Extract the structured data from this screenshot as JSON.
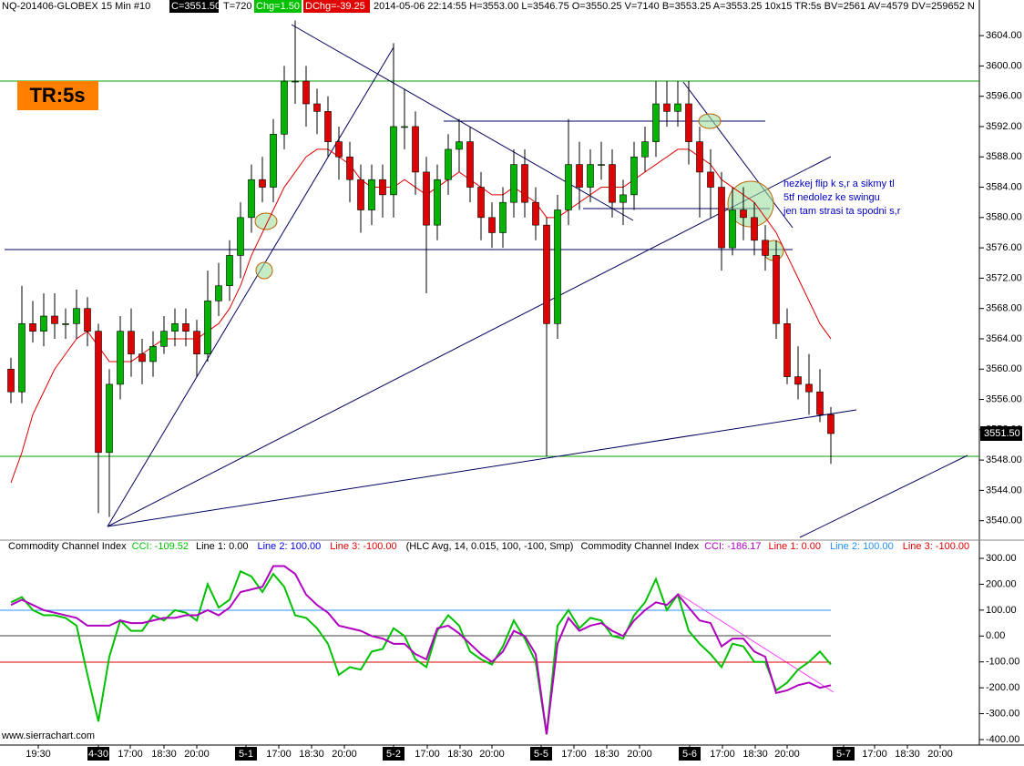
{
  "header": {
    "symbol": "NQ-201406-GLOBEX 15 Min  #10",
    "close": "C=3551.50",
    "ticks": "T=720",
    "chg": "Chg=1.50",
    "dchg": "DChg=-39.25",
    "info": "2014-05-06 22:14:55 H=3553.00 L=3546.75 O=3550.25 V=7140 B=3553.25 A=3553.25 10x15 TR:5s BV=2561 AV=4579 DV=259652 N",
    "badge": "TR:5s",
    "price_box": "3551.50",
    "note": [
      "hezkej flip k s,r a sikmy tl",
      "5tf nedolez ke swingu",
      "jen tam strasi ta spodni s,r"
    ],
    "site": "www.sierrachart.com"
  },
  "chart_data": [
    {
      "type": "candlestick",
      "up_color": "#00b400",
      "down_color": "#e00000",
      "open": [
        3560,
        3557,
        3566,
        3565,
        3567,
        3566,
        3566,
        3568,
        3565,
        3549,
        3558,
        3565,
        3562,
        3561,
        3563,
        3565,
        3566,
        3565,
        3562,
        3569,
        3571,
        3575,
        3580,
        3585,
        3584,
        3591,
        3598,
        3598,
        3595,
        3594,
        3590,
        3588,
        3585,
        3581,
        3585,
        3583,
        3592,
        3592,
        3586,
        3579,
        3585,
        3589,
        3590,
        3584,
        3580,
        3578,
        3582,
        3587,
        3582,
        3579,
        3566,
        3581,
        3587,
        3584,
        3587,
        3587,
        3582,
        3583,
        3588,
        3590,
        3595,
        3594,
        3595,
        3590,
        3586,
        3584,
        3576,
        3581,
        3580,
        3577,
        3575,
        3566,
        3559,
        3558,
        3557,
        3554
      ],
      "high": [
        3561.5,
        3571,
        3569,
        3570,
        3570,
        3568,
        3570.5,
        3569.5,
        3566,
        3560,
        3567,
        3568,
        3564,
        3565,
        3567,
        3568,
        3568,
        3566.5,
        3573,
        3574,
        3577,
        3582,
        3587,
        3588,
        3593,
        3600,
        3606,
        3600,
        3597,
        3596,
        3592,
        3590,
        3587,
        3587,
        3587,
        3603,
        3597,
        3594,
        3588,
        3587,
        3591,
        3593,
        3592,
        3586,
        3582,
        3584,
        3589,
        3589,
        3584,
        3580,
        3583,
        3593,
        3590,
        3589,
        3590,
        3589,
        3585,
        3590,
        3592,
        3598,
        3598,
        3598,
        3598,
        3592,
        3589,
        3586,
        3584,
        3584,
        3582,
        3579,
        3577,
        3568,
        3563,
        3562,
        3560,
        3555
      ],
      "low": [
        3555.5,
        3555.5,
        3563.5,
        3563,
        3564,
        3564,
        3564,
        3563,
        3541,
        3540.5,
        3556,
        3559,
        3558,
        3559,
        3562,
        3563,
        3563,
        3559,
        3561,
        3567,
        3569,
        3572,
        3578,
        3582,
        3582,
        3589,
        3595,
        3592,
        3591,
        3588,
        3585,
        3582,
        3578,
        3579,
        3580,
        3580,
        3589,
        3583,
        3570,
        3577,
        3583,
        3586,
        3582,
        3577,
        3576,
        3576,
        3580,
        3580,
        3577,
        3548.5,
        3564,
        3579,
        3581,
        3582,
        3585,
        3580,
        3579,
        3581,
        3586,
        3588,
        3592,
        3592,
        3587,
        3580,
        3580,
        3573,
        3575,
        3577,
        3575,
        3573,
        3564,
        3558,
        3556,
        3554,
        3553,
        3547.5
      ],
      "close": [
        3557,
        3566,
        3565,
        3567,
        3566,
        3566,
        3568,
        3565,
        3549,
        3558,
        3565,
        3562,
        3561,
        3563,
        3565,
        3566,
        3565,
        3562,
        3569,
        3571,
        3575,
        3580,
        3585,
        3584,
        3591,
        3598,
        3598,
        3595,
        3594,
        3590,
        3588,
        3585,
        3581,
        3585,
        3583,
        3592,
        3592,
        3586,
        3579,
        3585,
        3589,
        3590,
        3584,
        3580,
        3578,
        3582,
        3587,
        3582,
        3579,
        3566,
        3581,
        3587,
        3584,
        3587,
        3587,
        3582,
        3583,
        3588,
        3590,
        3595,
        3594,
        3595,
        3590,
        3586,
        3584,
        3576,
        3581,
        3580,
        3577,
        3575,
        3566,
        3559,
        3558,
        3557,
        3554,
        3551.5
      ],
      "overlay": {
        "color": "#e00000",
        "values": [
          3545,
          3549,
          3554,
          3557,
          3560,
          3562,
          3564,
          3565,
          3563,
          3561,
          3561,
          3561,
          3562,
          3563,
          3564,
          3564,
          3564,
          3564,
          3565,
          3566,
          3568,
          3571,
          3575,
          3578,
          3581,
          3584,
          3586,
          3588,
          3589,
          3589,
          3588,
          3587,
          3585,
          3584,
          3584,
          3584,
          3585,
          3584,
          3583,
          3584,
          3585,
          3586,
          3585,
          3584,
          3583,
          3583,
          3584,
          3583,
          3582,
          3580,
          3580,
          3581,
          3582,
          3583,
          3584,
          3584,
          3584,
          3585,
          3586,
          3587,
          3588,
          3589,
          3589,
          3588,
          3587,
          3585,
          3584,
          3583,
          3582,
          3580,
          3578,
          3575,
          3572,
          3569,
          3566,
          3564
        ]
      },
      "ylim": [
        3537.8,
        3608.7
      ],
      "yticks": [
        {
          "value": 3540,
          "label": "3540.00"
        },
        {
          "value": 3544,
          "label": "3544.00"
        },
        {
          "value": 3548,
          "label": "3548.00"
        },
        {
          "value": 3552,
          "label": "3552.00"
        },
        {
          "value": 3556,
          "label": "3556.00"
        },
        {
          "value": 3560,
          "label": "3560.00"
        },
        {
          "value": 3564,
          "label": "3564.00"
        },
        {
          "value": 3568,
          "label": "3568.00"
        },
        {
          "value": 3572,
          "label": "3572.00"
        },
        {
          "value": 3576,
          "label": "3576.00"
        },
        {
          "value": 3580,
          "label": "3580.00"
        },
        {
          "value": 3584,
          "label": "3584.00"
        },
        {
          "value": 3588,
          "label": "3588.00"
        },
        {
          "value": 3592,
          "label": "3592.00"
        },
        {
          "value": 3596,
          "label": "3596.00"
        },
        {
          "value": 3600,
          "label": "3600.00"
        },
        {
          "value": 3604,
          "label": "3604.00"
        }
      ],
      "xticks": [
        "19:30",
        "4-30",
        "17:00",
        "18:30",
        "20:00",
        "5-1",
        "17:00",
        "18:30",
        "20:00",
        "5-2",
        "17:00",
        "18:30",
        "20:00",
        "5-5",
        "17:00",
        "18:30",
        "20:00",
        "5-6",
        "17:00",
        "18:30",
        "20:00",
        "5-7",
        "17:00",
        "18:30",
        "20:00"
      ]
    },
    {
      "type": "line",
      "series": [
        {
          "name": "Commodity Channel Index",
          "color": "#00c000",
          "labels": [
            "CCI: -109.52",
            "Line 1: 0.00",
            "Line 2: 100.00",
            "Line 3: -100.00",
            "(HLC Avg, 14, 0.015, 100, -100, Smp)"
          ],
          "values": [
            130,
            150,
            100,
            80,
            80,
            70,
            40,
            -150,
            -330,
            -80,
            60,
            20,
            20,
            80,
            60,
            100,
            90,
            60,
            200,
            110,
            140,
            250,
            230,
            170,
            240,
            190,
            80,
            70,
            30,
            -30,
            -150,
            -120,
            -130,
            -60,
            -50,
            30,
            0,
            -90,
            -120,
            20,
            80,
            40,
            -60,
            -90,
            -110,
            -40,
            60,
            -10,
            -100,
            -380,
            40,
            100,
            30,
            70,
            60,
            0,
            -10,
            80,
            130,
            220,
            100,
            160,
            20,
            -30,
            -70,
            -120,
            -30,
            -40,
            -100,
            -100,
            -210,
            -180,
            -130,
            -100,
            -60,
            -110
          ]
        },
        {
          "name": "Commodity Channel Index",
          "color": "#b000c0",
          "labels": [
            "CCI: -186.17",
            "Line 1: 0.00",
            "Line 2: 100.00",
            "Line 3: -100.00"
          ],
          "values": [
            120,
            140,
            120,
            100,
            90,
            80,
            70,
            40,
            40,
            40,
            60,
            50,
            50,
            60,
            70,
            70,
            80,
            80,
            100,
            80,
            110,
            170,
            180,
            190,
            270,
            270,
            240,
            160,
            120,
            90,
            40,
            30,
            20,
            0,
            -10,
            -30,
            -30,
            -70,
            -90,
            30,
            40,
            10,
            -30,
            -70,
            -100,
            -60,
            20,
            0,
            -70,
            -380,
            -30,
            70,
            20,
            40,
            50,
            20,
            0,
            60,
            100,
            130,
            120,
            160,
            110,
            60,
            50,
            -40,
            -10,
            -10,
            -60,
            -80,
            -220,
            -210,
            -190,
            -180,
            -200,
            -190
          ]
        }
      ],
      "ylim": [
        -410.6,
        345.8
      ],
      "yticks": [
        {
          "value": 300,
          "label": "300.00"
        },
        {
          "value": 200,
          "label": "200.00"
        },
        {
          "value": 100,
          "label": "100.00"
        },
        {
          "value": 0,
          "label": "0.00"
        },
        {
          "value": -100,
          "label": "-100.00"
        },
        {
          "value": -200,
          "label": "-200.00"
        },
        {
          "value": -300,
          "label": "-300.00"
        },
        {
          "value": -400,
          "label": "-400.00"
        }
      ]
    }
  ]
}
